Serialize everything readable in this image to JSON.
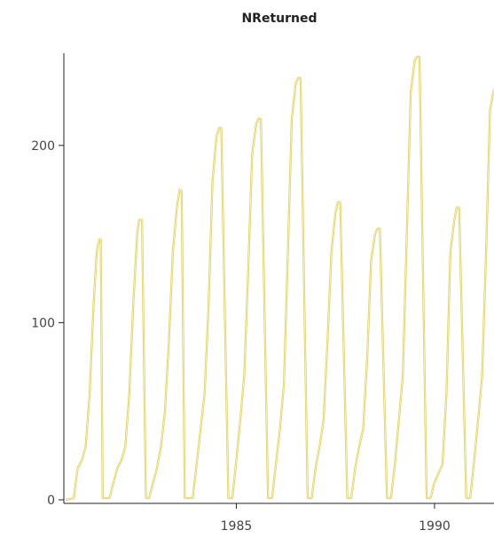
{
  "chart_data": {
    "type": "line",
    "title": "NReturned",
    "xlabel": "",
    "ylabel": "",
    "xlim": [
      1980.65,
      1991.5
    ],
    "ylim": [
      -2,
      252
    ],
    "xticks": [
      1985,
      1990
    ],
    "yticks": [
      0,
      100,
      200
    ],
    "grid": false,
    "series": [
      {
        "color": "#f2e27a",
        "x": [
          1980.7,
          1980.9,
          1981.0,
          1981.1,
          1981.2,
          1981.3,
          1981.4,
          1981.48,
          1981.54,
          1981.58,
          1981.63,
          1981.8,
          1982.0,
          1982.1,
          1982.2,
          1982.3,
          1982.4,
          1982.5,
          1982.55,
          1982.62,
          1982.72,
          1982.8,
          1983.0,
          1983.1,
          1983.2,
          1983.3,
          1983.4,
          1983.5,
          1983.57,
          1983.62,
          1983.7,
          1983.9,
          1984.0,
          1984.1,
          1984.2,
          1984.3,
          1984.4,
          1984.5,
          1984.57,
          1984.62,
          1984.8,
          1984.9,
          1985.0,
          1985.1,
          1985.2,
          1985.3,
          1985.4,
          1985.5,
          1985.56,
          1985.62,
          1985.8,
          1985.9,
          1986.0,
          1986.1,
          1986.2,
          1986.3,
          1986.4,
          1986.5,
          1986.56,
          1986.62,
          1986.8,
          1986.9,
          1987.0,
          1987.1,
          1987.2,
          1987.3,
          1987.4,
          1987.5,
          1987.56,
          1987.62,
          1987.8,
          1987.9,
          1988.0,
          1988.1,
          1988.2,
          1988.3,
          1988.4,
          1988.5,
          1988.56,
          1988.62,
          1988.8,
          1988.9,
          1989.0,
          1989.1,
          1989.2,
          1989.3,
          1989.4,
          1989.5,
          1989.56,
          1989.62,
          1989.8,
          1989.9,
          1990.0,
          1990.1,
          1990.2,
          1990.3,
          1990.4,
          1990.5,
          1990.56,
          1990.62,
          1990.8,
          1990.9,
          1991.0,
          1991.1,
          1991.2,
          1991.3,
          1991.4,
          1991.5
        ],
        "values": [
          0,
          1,
          18,
          22,
          30,
          60,
          110,
          140,
          147,
          147,
          1,
          1,
          18,
          22,
          30,
          60,
          110,
          150,
          158,
          158,
          1,
          1,
          18,
          30,
          50,
          90,
          140,
          165,
          175,
          174,
          1,
          1,
          20,
          40,
          60,
          110,
          180,
          205,
          210,
          210,
          1,
          1,
          22,
          45,
          70,
          130,
          195,
          212,
          215,
          215,
          1,
          1,
          20,
          40,
          65,
          140,
          215,
          235,
          238,
          238,
          1,
          1,
          18,
          30,
          45,
          90,
          140,
          162,
          168,
          168,
          1,
          1,
          18,
          30,
          40,
          80,
          135,
          150,
          153,
          153,
          1,
          1,
          20,
          45,
          70,
          150,
          230,
          248,
          250,
          250,
          1,
          1,
          10,
          15,
          20,
          60,
          140,
          158,
          165,
          165,
          1,
          1,
          22,
          45,
          70,
          140,
          220,
          232
        ]
      }
    ]
  }
}
